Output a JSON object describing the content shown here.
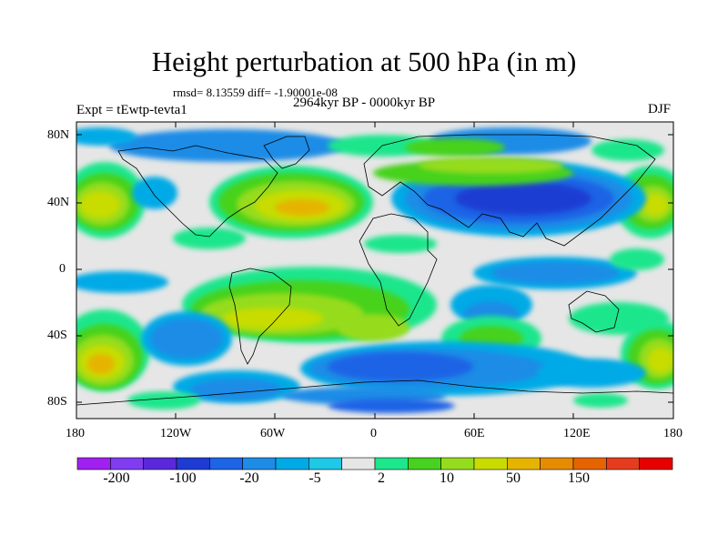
{
  "title": "Height perturbation at 500 hPa (in m)",
  "stats": "rmsd= 8.13559 diff= -1.90001e-08",
  "period": "2964kyr BP - 0000kyr BP",
  "expt": "Expt = tEwtp-tevta1",
  "season": "DJF",
  "axes": {
    "lat_labels": [
      "80N",
      "40N",
      "0",
      "40S",
      "80S"
    ],
    "lon_labels": [
      "180",
      "120W",
      "60W",
      "0",
      "60E",
      "120E",
      "180"
    ]
  },
  "colorbar": {
    "colors": [
      "#a020f0",
      "#7f3cf0",
      "#5a28d8",
      "#1e3cd2",
      "#1e64e6",
      "#1e8ce6",
      "#00aae6",
      "#1ec8e6",
      "#e6e6e6",
      "#1ee68c",
      "#46d21e",
      "#96dc1e",
      "#c8dc00",
      "#e6b400",
      "#e68c00",
      "#e66400",
      "#e63c1e",
      "#e60000"
    ],
    "labels": [
      "-200",
      "-100",
      "-20",
      "-5",
      "2",
      "10",
      "50",
      "150"
    ]
  },
  "colors": {
    "neutral": "#e6e6e6",
    "strong_neg": "#1e3cd2",
    "mid_neg": "#1e64e6",
    "weak_neg": "#1e8ce6",
    "faint_neg": "#00aae6",
    "faint_pos": "#1ee68c",
    "weak_pos": "#46d21e",
    "mid_pos": "#96dc1e",
    "strong_pos": "#c8dc00",
    "peak_pos": "#e6b400"
  }
}
